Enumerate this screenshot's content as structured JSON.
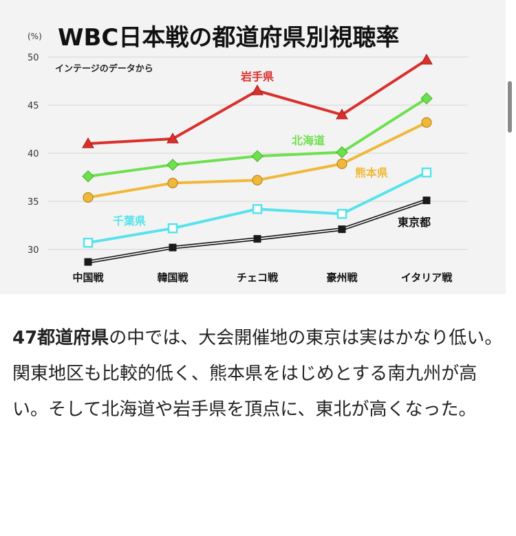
{
  "chart_data": {
    "type": "line",
    "title": "WBC日本戦の都道府県別視聴率",
    "subtitle": "インテージのデータから",
    "unit": "(%)",
    "categories": [
      "中国戦",
      "韓国戦",
      "チェコ戦",
      "豪州戦",
      "イタリア戦"
    ],
    "ylim": [
      28,
      50
    ],
    "yticks": [
      30,
      35,
      40,
      45,
      50
    ],
    "grid": true,
    "series": [
      {
        "name": "岩手県",
        "values": [
          41.0,
          41.5,
          46.5,
          44.0,
          49.7
        ],
        "color": "#d9302c",
        "marker": "triangle"
      },
      {
        "name": "北海道",
        "values": [
          37.6,
          38.8,
          39.7,
          40.1,
          45.7
        ],
        "color": "#6ee04e",
        "marker": "diamond"
      },
      {
        "name": "熊本県",
        "values": [
          35.4,
          36.9,
          37.2,
          38.9,
          43.2
        ],
        "color": "#f0b83a",
        "marker": "circle"
      },
      {
        "name": "千葉県",
        "values": [
          30.7,
          32.2,
          34.2,
          33.7,
          38.0
        ],
        "color": "#57e3ec",
        "marker": "square-open"
      },
      {
        "name": "東京都",
        "values": [
          28.7,
          30.2,
          31.1,
          32.1,
          35.1
        ],
        "color": "#1a1a1a",
        "marker": "square"
      }
    ]
  },
  "article": {
    "para1_strong": "47都道府県",
    "para1_rest": "の中では、大会開催地の東京は実はかなり低い。",
    "para2": "関東地区も比較的低く、熊本県をはじめとする南九州が高い。そして北海道や岩手県を頂点に、東北が高くなった。"
  }
}
